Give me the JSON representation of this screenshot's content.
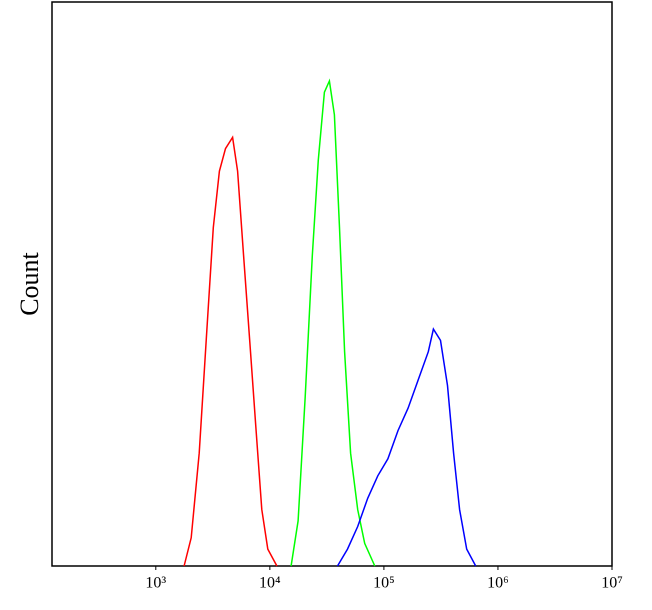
{
  "chart_data": {
    "type": "line",
    "y_label": "Count",
    "xscale": "log",
    "xlim": [
      123,
      10000000
    ],
    "xticks": [
      {
        "value": 1000,
        "label": "10³"
      },
      {
        "value": 10000,
        "label": "10⁴"
      },
      {
        "value": 100000,
        "label": "10⁵"
      },
      {
        "value": 1000000,
        "label": "10⁶"
      },
      {
        "value": 10000000,
        "label": "10⁷"
      }
    ],
    "ylim": [
      0,
      100
    ],
    "series": [
      {
        "color": "#ff0000",
        "x": [
          1770,
          2042,
          2404,
          2768,
          3192,
          3612,
          4083,
          4710,
          5215,
          5891,
          6653,
          7516,
          8492,
          9597,
          11530
        ],
        "values": [
          0,
          5,
          20,
          40,
          60,
          70,
          74,
          76,
          70,
          55,
          40,
          25,
          10,
          3,
          0
        ]
      },
      {
        "color": "#00ff00",
        "x": [
          15350,
          17700,
          20420,
          23550,
          26610,
          30060,
          33270,
          36810,
          40820,
          45190,
          51050,
          58880,
          67920,
          83180
        ],
        "values": [
          0,
          8,
          30,
          55,
          72,
          84,
          86,
          80,
          60,
          38,
          20,
          10,
          4,
          0
        ]
      },
      {
        "color": "#0000ff",
        "x": [
          39170,
          47990,
          58880,
          72100,
          88470,
          108400,
          132900,
          162900,
          199800,
          244900,
          271600,
          313300,
          361400,
          408300,
          461300,
          532100,
          638300
        ],
        "values": [
          0,
          3,
          7,
          12,
          16,
          19,
          24,
          28,
          33,
          38,
          42,
          40,
          32,
          20,
          10,
          3,
          0
        ]
      }
    ]
  }
}
